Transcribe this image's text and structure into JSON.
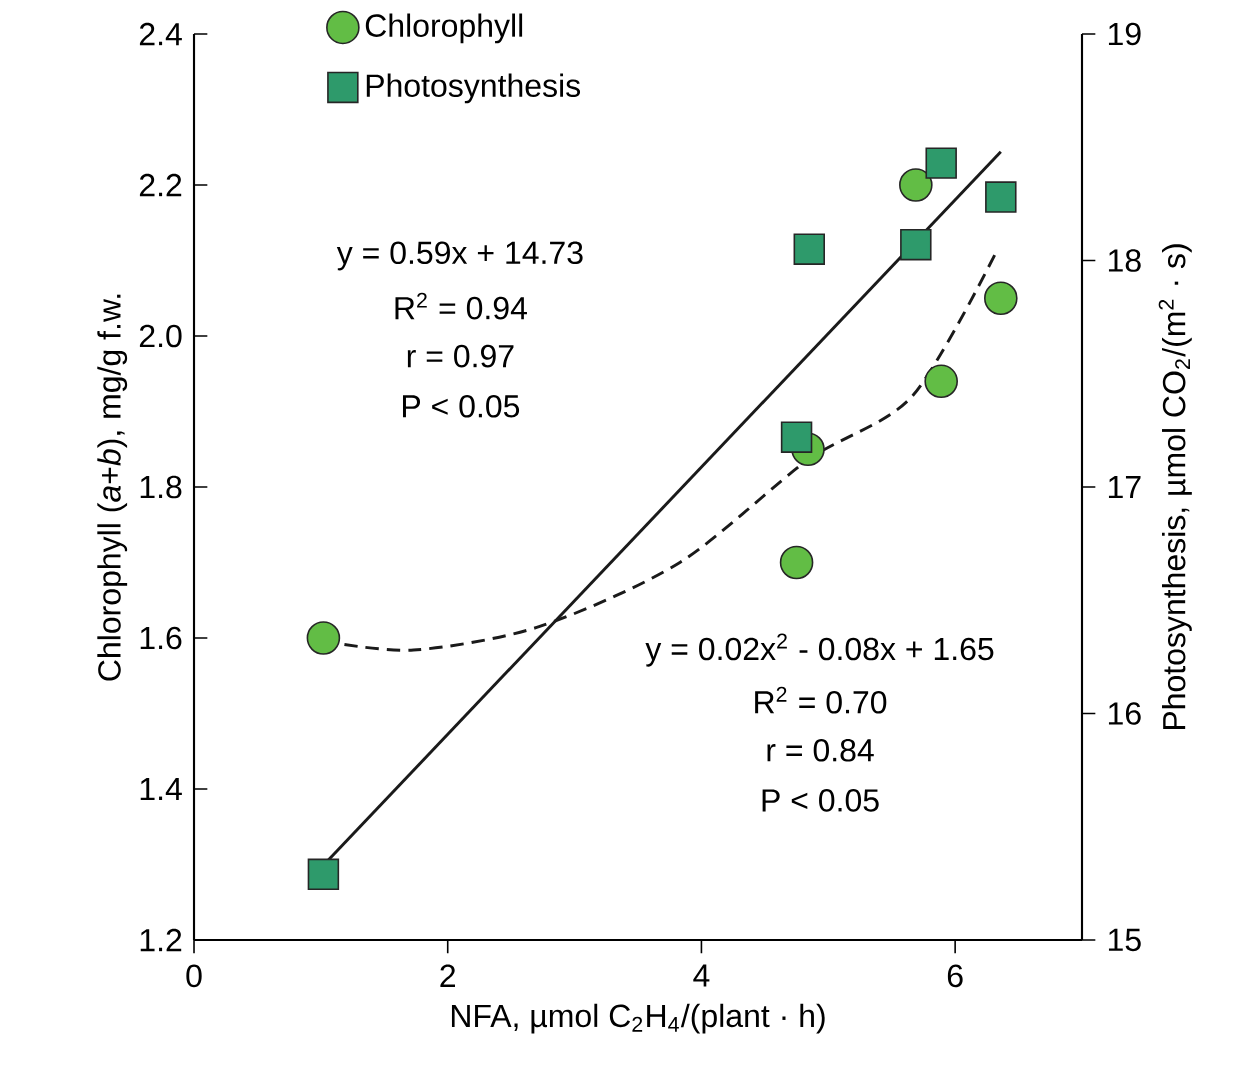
{
  "chart_data": {
    "type": "scatter",
    "xlabel": "NFA, µmol C$_{2}$H$_{4}$/(plant · h)",
    "ylabel": "Chlorophyll (*a*+*b*), mg/g f.w.",
    "y2label": "Photosynthesis, µmol CO$_{2}$/(m$^{2}$ · s)",
    "xlim": [
      0,
      7
    ],
    "xticks": [
      0,
      2,
      4,
      6
    ],
    "ylim": [
      1.2,
      2.4
    ],
    "yticks": [
      1.2,
      1.4,
      1.6,
      1.8,
      {
        "value": 2,
        "label": "2.0"
      },
      2.2,
      2.4
    ],
    "y2lim": [
      15,
      19
    ],
    "y2ticks": [
      15,
      16,
      17,
      18,
      19
    ],
    "legend": "top left",
    "grid": false,
    "series": [
      {
        "name": "Chlorophyll",
        "axis": "y",
        "marker": "circle",
        "color": "#62bd45",
        "x": [
          1.02,
          4.75,
          4.84,
          5.69,
          5.89,
          6.36
        ],
        "values": [
          1.6,
          1.7,
          1.85,
          2.2,
          1.94,
          2.05
        ]
      },
      {
        "name": "Photosynthesis",
        "axis": "y2",
        "marker": "square",
        "color": "#2e9a6b",
        "x": [
          1.02,
          4.75,
          4.85,
          5.69,
          5.89,
          6.36
        ],
        "values": [
          15.29,
          17.22,
          18.05,
          18.07,
          18.43,
          18.28
        ]
      },
      {
        "type": "line",
        "axis": "y2",
        "marker": "none",
        "line_style": "solid",
        "color": "#1a1a1a",
        "x": [
          1.02,
          6.36
        ],
        "values": [
          15.33,
          18.48
        ]
      },
      {
        "type": "line",
        "axis": "y",
        "marker": "none",
        "line_style": "dashed",
        "color": "#1a1a1a",
        "x": [
          1.02,
          1.73,
          2.72,
          3.83,
          4.84,
          5.66,
          6.32
        ],
        "values": [
          1.596,
          1.584,
          1.615,
          1.7,
          1.836,
          1.92,
          2.11
        ]
      }
    ],
    "annotations": [
      "y = 0.59x + 14.73",
      "R$^{2}$ = 0.94",
      "r = 0.97",
      "P < 0.05",
      "y = 0.02x$^{2}$ - 0.08x + 1.65",
      "R$^{2}$ = 0.70",
      "r = 0.84",
      "P < 0.05"
    ]
  }
}
